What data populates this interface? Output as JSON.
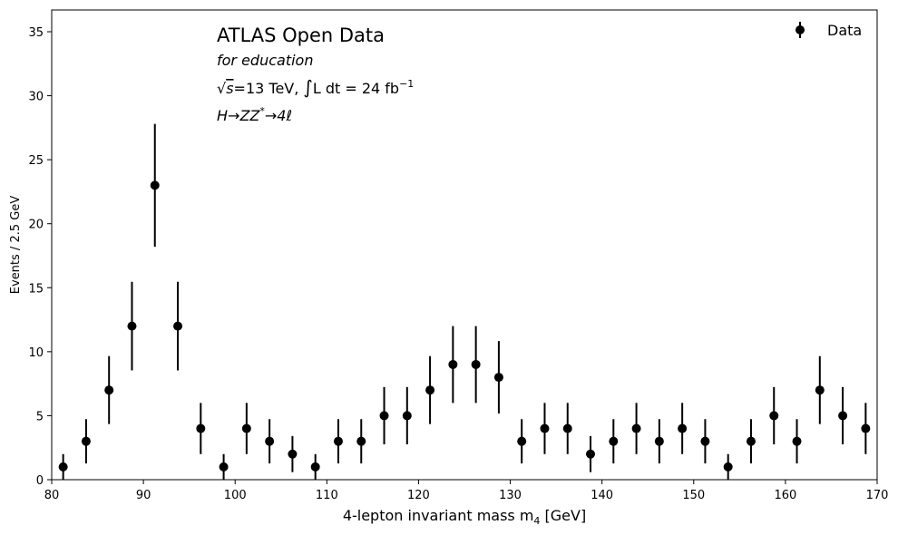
{
  "chart_data": {
    "type": "scatter",
    "xlabel": "4-lepton invariant mass m",
    "xlabel_sub": "4",
    "xlabel_unit": " [GeV]",
    "ylabel": "Events / 2.5 GeV",
    "xlim": [
      80,
      170
    ],
    "ylim": [
      0,
      36.7
    ],
    "xticks": [
      80,
      90,
      100,
      110,
      120,
      130,
      140,
      150,
      160,
      170
    ],
    "yticks": [
      0,
      5,
      10,
      15,
      20,
      25,
      30,
      35
    ],
    "legend_position": "top-right",
    "grid": false,
    "marker_color": "#000000",
    "series": [
      {
        "name": "Data",
        "x": [
          81.25,
          83.75,
          86.25,
          88.75,
          91.25,
          93.75,
          96.25,
          98.75,
          101.25,
          103.75,
          106.25,
          108.75,
          111.25,
          113.75,
          116.25,
          118.75,
          121.25,
          123.75,
          126.25,
          128.75,
          131.25,
          133.75,
          136.25,
          138.75,
          141.25,
          143.75,
          146.25,
          148.75,
          151.25,
          153.75,
          156.25,
          158.75,
          161.25,
          163.75,
          166.25,
          168.75
        ],
        "y": [
          1,
          3,
          7,
          12,
          23,
          12,
          4,
          1,
          4,
          3,
          2,
          1,
          3,
          3,
          5,
          5,
          7,
          9,
          9,
          8,
          3,
          4,
          4,
          2,
          3,
          4,
          3,
          4,
          3,
          1,
          3,
          5,
          3,
          7,
          5,
          4
        ],
        "yerr": [
          1,
          1.73,
          2.65,
          3.46,
          4.8,
          3.46,
          2,
          1,
          2,
          1.73,
          1.41,
          1,
          1.73,
          1.73,
          2.24,
          2.24,
          2.65,
          3,
          3,
          2.83,
          1.73,
          2,
          2,
          1.41,
          1.73,
          2,
          1.73,
          2,
          1.73,
          1,
          1.73,
          2.24,
          1.73,
          2.65,
          2.24,
          2
        ]
      }
    ]
  },
  "annotations": {
    "title": "ATLAS Open Data",
    "subtitle": "for education",
    "energy_sqrt": "√",
    "energy_s": "s",
    "energy_text": "=13 TeV, ",
    "integral_sign": "∫",
    "lumi_text": "L dt = 24 fb",
    "lumi_exp": "−1",
    "process_H": "H",
    "process_arrow1": "→",
    "process_ZZ": "ZZ",
    "process_star": "*",
    "process_arrow2": "→",
    "process_4l": "4ℓ"
  }
}
